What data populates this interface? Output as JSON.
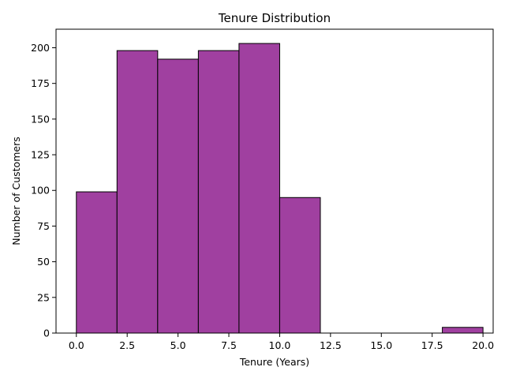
{
  "chart_data": {
    "type": "bar",
    "title": "Tenure Distribution",
    "xlabel": "Tenure (Years)",
    "ylabel": "Number of Customers",
    "bins": [
      {
        "start": 0,
        "end": 2,
        "count": 99
      },
      {
        "start": 2,
        "end": 4,
        "count": 198
      },
      {
        "start": 4,
        "end": 6,
        "count": 192
      },
      {
        "start": 6,
        "end": 8,
        "count": 198
      },
      {
        "start": 8,
        "end": 10,
        "count": 203
      },
      {
        "start": 10,
        "end": 12,
        "count": 95
      },
      {
        "start": 12,
        "end": 14,
        "count": 0
      },
      {
        "start": 14,
        "end": 16,
        "count": 0
      },
      {
        "start": 16,
        "end": 18,
        "count": 0
      },
      {
        "start": 18,
        "end": 20,
        "count": 4
      }
    ],
    "xlim": [
      -1,
      20.5
    ],
    "ylim": [
      0,
      213
    ],
    "xticks": [
      {
        "value": 0,
        "label": "0.0"
      },
      {
        "value": 2.5,
        "label": "2.5"
      },
      {
        "value": 5,
        "label": "5.0"
      },
      {
        "value": 7.5,
        "label": "7.5"
      },
      {
        "value": 10,
        "label": "10.0"
      },
      {
        "value": 12.5,
        "label": "12.5"
      },
      {
        "value": 15,
        "label": "15.0"
      },
      {
        "value": 17.5,
        "label": "17.5"
      },
      {
        "value": 20,
        "label": "20.0"
      }
    ],
    "yticks": [
      {
        "value": 0,
        "label": "0"
      },
      {
        "value": 25,
        "label": "25"
      },
      {
        "value": 50,
        "label": "50"
      },
      {
        "value": 75,
        "label": "75"
      },
      {
        "value": 100,
        "label": "100"
      },
      {
        "value": 125,
        "label": "125"
      },
      {
        "value": 150,
        "label": "150"
      },
      {
        "value": 175,
        "label": "175"
      },
      {
        "value": 200,
        "label": "200"
      }
    ],
    "grid": false,
    "bar_color": "#a040a0",
    "edge_color": "#000000"
  }
}
